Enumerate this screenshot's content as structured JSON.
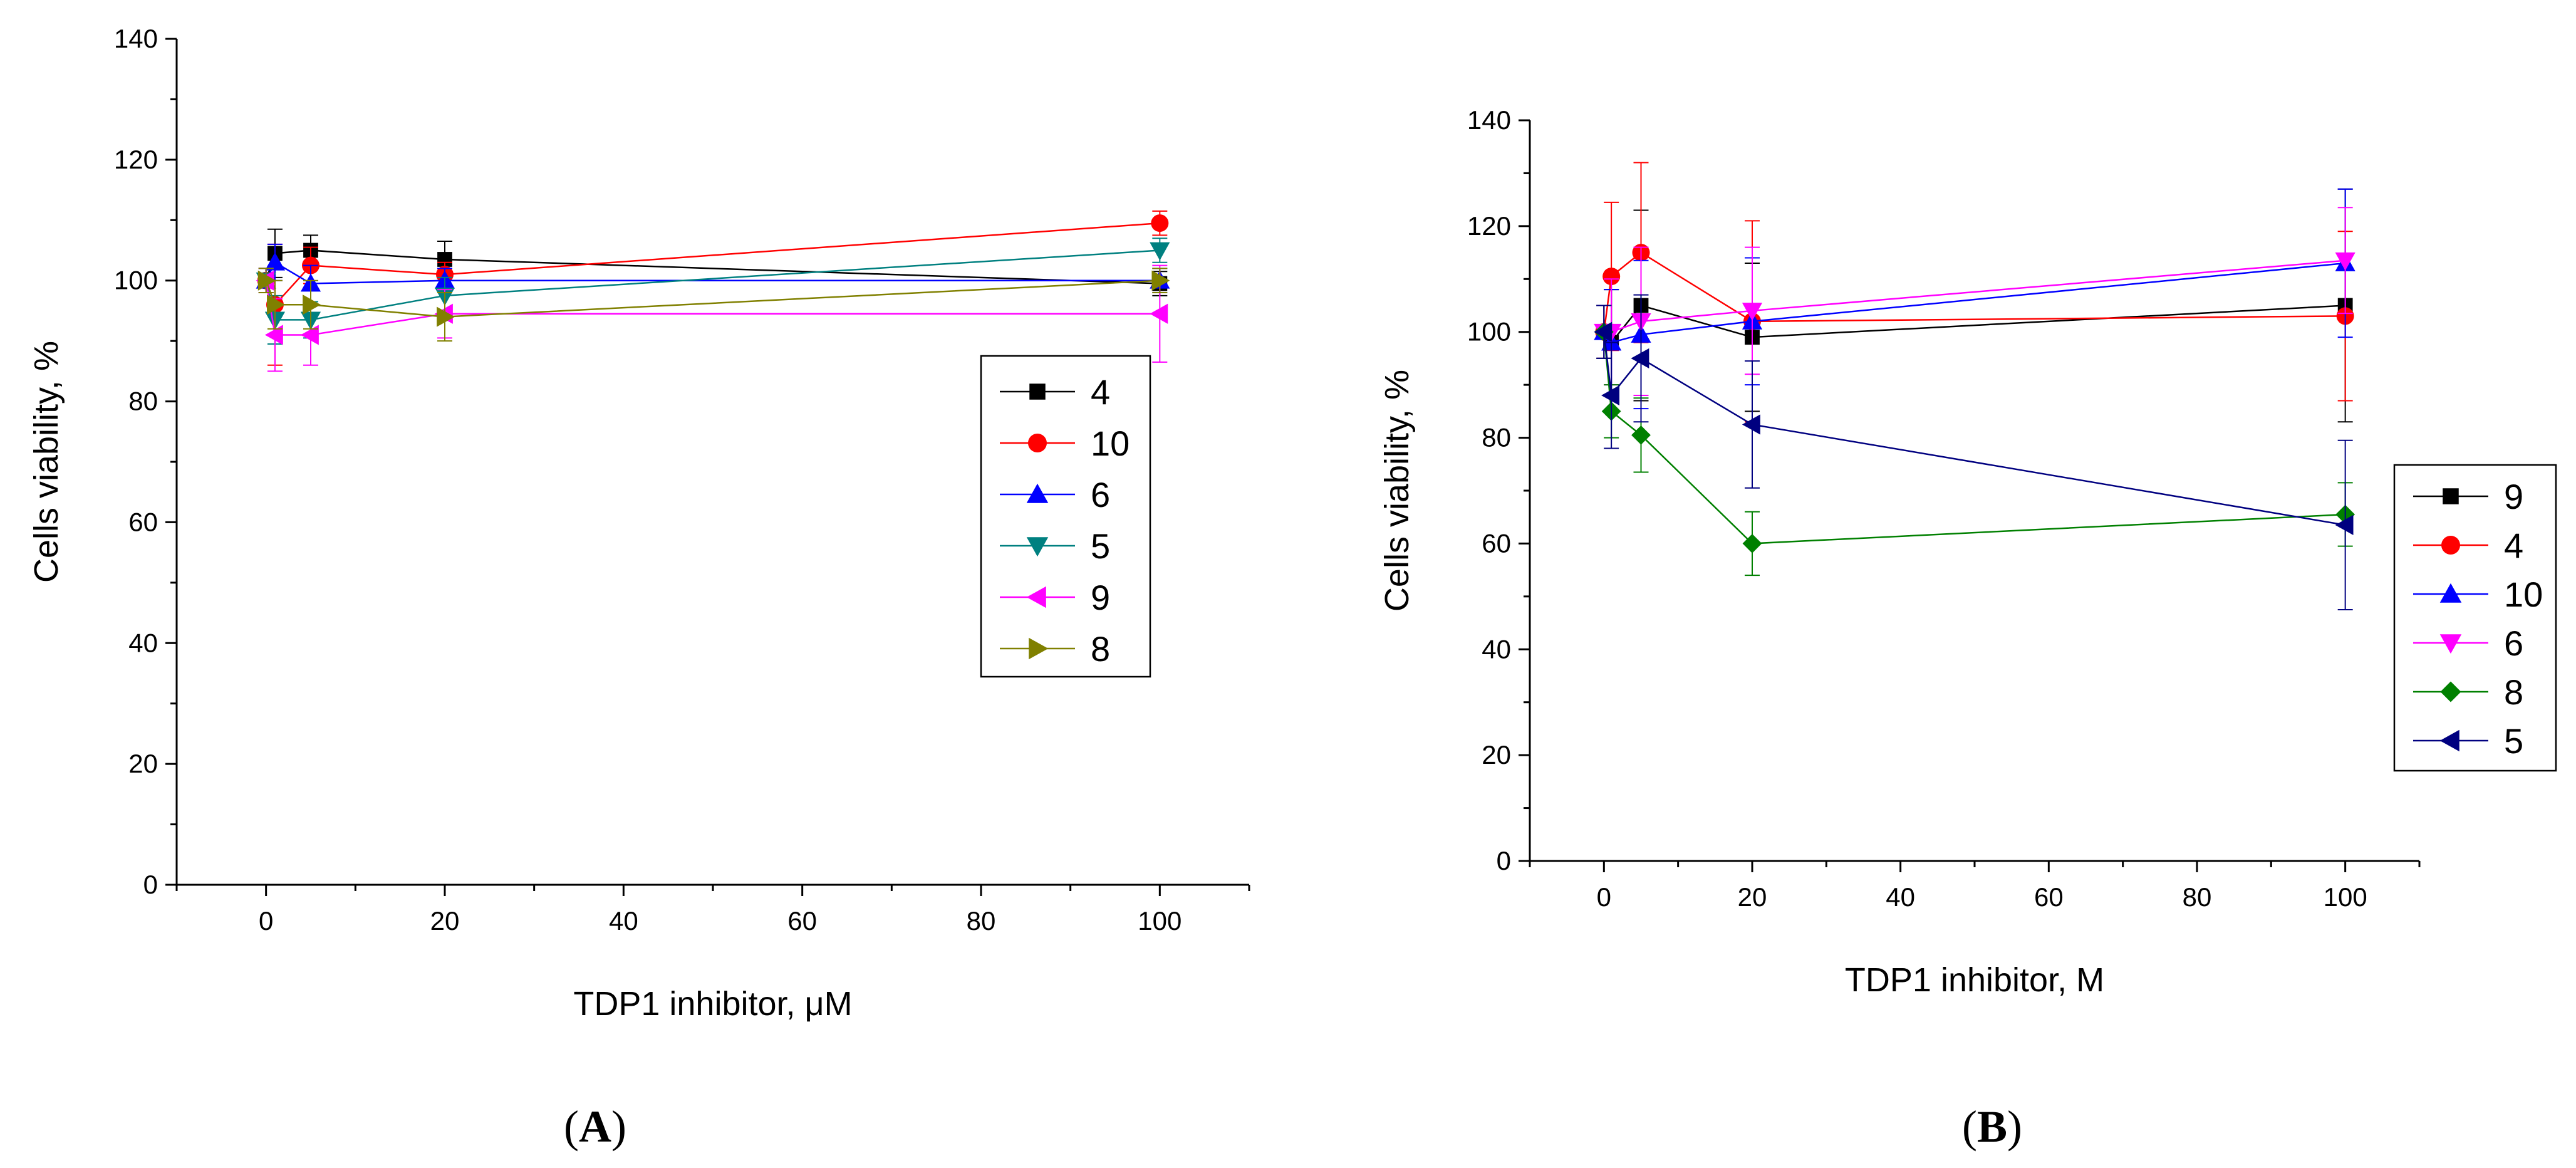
{
  "chart_data": [
    {
      "type": "line",
      "panel_label": "(A)",
      "panel_letter": "A",
      "xlabel": "TDP1 inhibitor, μM",
      "ylabel": "Cells viability, %",
      "xlim": [
        -10,
        110
      ],
      "ylim": [
        0,
        140
      ],
      "xticks": [
        0,
        20,
        40,
        60,
        80,
        100
      ],
      "yticks": [
        0,
        20,
        40,
        60,
        80,
        100,
        120,
        140
      ],
      "legend_position": "right",
      "x": [
        0,
        1,
        5,
        20,
        100
      ],
      "series": [
        {
          "name": "4",
          "color": "#000000",
          "marker": "square",
          "values": [
            100,
            104.5,
            105,
            103.5,
            99.5
          ],
          "errors": [
            2,
            4,
            2.5,
            3,
            2
          ]
        },
        {
          "name": "10",
          "color": "#ff0000",
          "marker": "circle",
          "values": [
            100,
            96,
            102.5,
            101,
            109.5
          ],
          "errors": [
            2,
            10,
            3,
            2,
            2
          ]
        },
        {
          "name": "6",
          "color": "#0000ff",
          "marker": "triangle-up",
          "values": [
            100,
            103,
            99.5,
            100,
            100
          ],
          "errors": [
            2,
            3,
            3,
            2,
            2
          ]
        },
        {
          "name": "5",
          "color": "#008080",
          "marker": "triangle-down",
          "values": [
            100,
            93.5,
            93.5,
            97.5,
            105
          ],
          "errors": [
            2,
            4,
            3,
            3,
            2
          ]
        },
        {
          "name": "9",
          "color": "#ff00ff",
          "marker": "triangle-left",
          "values": [
            100,
            91,
            91,
            94.5,
            94.5
          ],
          "errors": [
            2,
            6,
            5,
            4,
            8
          ]
        },
        {
          "name": "8",
          "color": "#808000",
          "marker": "triangle-right",
          "values": [
            100,
            96,
            96,
            94,
            100
          ],
          "errors": [
            2,
            4,
            4,
            4,
            2
          ]
        }
      ]
    },
    {
      "type": "line",
      "panel_label": "(B)",
      "panel_letter": "B",
      "xlabel": "TDP1 inhibitor, M",
      "ylabel": "Cells viability, %",
      "xlim": [
        -10,
        110
      ],
      "ylim": [
        0,
        140
      ],
      "xticks": [
        0,
        20,
        40,
        60,
        80,
        100
      ],
      "yticks": [
        0,
        20,
        40,
        60,
        80,
        100,
        120,
        140
      ],
      "legend_position": "right",
      "x": [
        0,
        1,
        5,
        20,
        100
      ],
      "series": [
        {
          "name": "9",
          "color": "#000000",
          "marker": "square",
          "values": [
            100,
            98,
            105,
            99,
            105
          ],
          "errors": [
            5,
            10,
            18,
            14,
            22
          ]
        },
        {
          "name": "4",
          "color": "#ff0000",
          "marker": "circle",
          "values": [
            100,
            110.5,
            115,
            102,
            103
          ],
          "errors": [
            5,
            14,
            17,
            19,
            16
          ]
        },
        {
          "name": "10",
          "color": "#0000ff",
          "marker": "triangle-up",
          "values": [
            100,
            98,
            99.5,
            102,
            113
          ],
          "errors": [
            5,
            10,
            14,
            12,
            14
          ]
        },
        {
          "name": "6",
          "color": "#ff00ff",
          "marker": "triangle-down",
          "values": [
            100,
            100,
            102,
            104,
            113.5
          ],
          "errors": [
            5,
            10,
            14,
            12,
            10
          ]
        },
        {
          "name": "8",
          "color": "#008000",
          "marker": "diamond",
          "values": [
            100,
            85,
            80.5,
            60,
            65.5
          ],
          "errors": [
            5,
            5,
            7,
            6,
            6
          ]
        },
        {
          "name": "5",
          "color": "#000080",
          "marker": "triangle-left",
          "values": [
            100,
            88,
            95,
            82.5,
            63.5
          ],
          "errors": [
            5,
            10,
            12,
            12,
            16
          ]
        }
      ]
    }
  ]
}
